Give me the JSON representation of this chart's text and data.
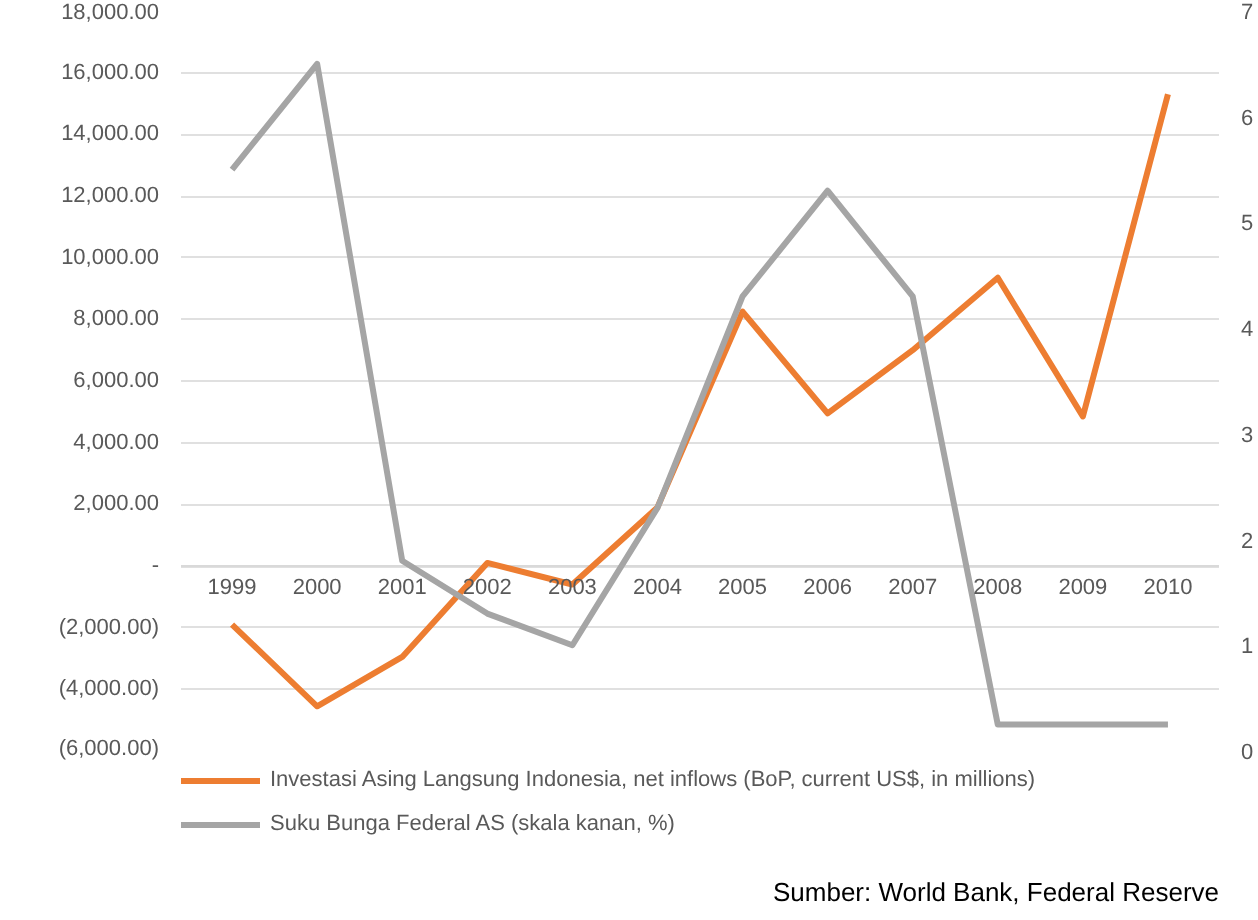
{
  "chart_data": {
    "type": "line",
    "categories": [
      "1999",
      "2000",
      "2001",
      "2002",
      "2003",
      "2004",
      "2005",
      "2006",
      "2007",
      "2008",
      "2009",
      "2010"
    ],
    "series": [
      {
        "name": "Investasi Asing Langsung Indonesia, net inflows (BoP, current US$, in millions)",
        "color": "#ed7d31",
        "values": [
          -1900,
          -4550,
          -2950,
          100,
          -600,
          1900,
          8250,
          4950,
          7000,
          9350,
          4850,
          15300
        ]
      },
      {
        "name": "Suku Bunga Federal AS (skala kanan, %)",
        "color": "#a5a5a5",
        "axis": "y2",
        "values": [
          5.5,
          6.5,
          1.8,
          1.3,
          1.0,
          2.3,
          4.3,
          5.3,
          4.3,
          0.25,
          0.25,
          0.25
        ]
      }
    ],
    "ylim": [
      -6000,
      18000
    ],
    "yticks": [
      {
        "value": -6000,
        "label": "(6,000.00)"
      },
      {
        "value": -4000,
        "label": "(4,000.00)"
      },
      {
        "value": -2000,
        "label": "(2,000.00)"
      },
      {
        "value": 0,
        "label": "-"
      },
      {
        "value": 2000,
        "label": "2,000.00"
      },
      {
        "value": 4000,
        "label": "4,000.00"
      },
      {
        "value": 6000,
        "label": "6,000.00"
      },
      {
        "value": 8000,
        "label": "8,000.00"
      },
      {
        "value": 10000,
        "label": "10,000.00"
      },
      {
        "value": 12000,
        "label": "12,000.00"
      },
      {
        "value": 14000,
        "label": "14,000.00"
      },
      {
        "value": 16000,
        "label": "16,000.00"
      },
      {
        "value": 18000,
        "label": "18,000.00"
      }
    ],
    "y2lim": [
      0,
      7
    ],
    "y2ticks": [
      0,
      1,
      2,
      3,
      4,
      5,
      6,
      7
    ],
    "grid": "y",
    "legend": "bottom",
    "line_style": "solid",
    "annotations": [
      "Sumber: World Bank, Federal Reserve"
    ]
  }
}
